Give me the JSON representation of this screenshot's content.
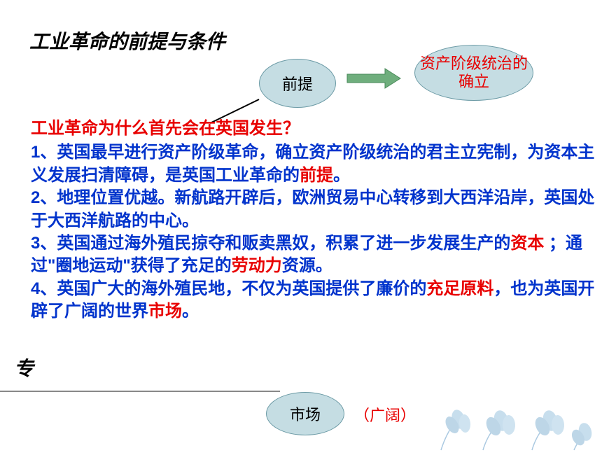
{
  "title": "工业革命的前提与条件",
  "ellipses": {
    "premise": "前提",
    "result": "资产阶级统治的确立",
    "market": "市场"
  },
  "broad": "（广阔）",
  "leftEdge": "专",
  "question": "工业革命为什么首先会在英国发生？",
  "points": [
    {
      "prefix": "1、英国最早进行资产阶级革命，确立资产阶级统治的君主立宪制，为资本主义发展扫清障碍，是英国工业革命的",
      "hl1": "前提",
      "rest": "。"
    },
    {
      "prefix": "2、地理位置优越。新航路开辟后，欧洲贸易中心转移到大西洋沿岸，英国处于大西洋航路的中心。",
      "hl1": "",
      "rest": ""
    },
    {
      "prefix": "3、英国通过海外殖民掠夺和贩卖黑奴，积累了进一步发展生产的",
      "hl1": "资本",
      "mid": " ；通过\"圈地运动\"获得了充足的",
      "hl2": "劳动力",
      "rest": "资源。"
    },
    {
      "prefix": "4、英国广大的海外殖民地，不仅为英国提供了廉价的",
      "hl1": "充足原料",
      "mid": "，也为英国开辟了广阔的世界",
      "hl2": "市场",
      "rest": "。"
    }
  ],
  "colors": {
    "ellipse_fill": "#c5dde3",
    "ellipse_border": "#6b9aa5",
    "red": "#e80000",
    "blue": "#0033cc",
    "arrow": "#4a8a5a"
  }
}
